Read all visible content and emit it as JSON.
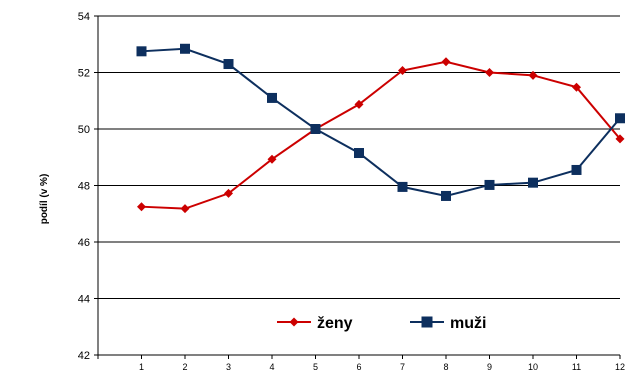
{
  "chart_data": {
    "type": "line",
    "title": "",
    "xlabel": "",
    "ylabel": "podíl (v %)",
    "categories": [
      "1",
      "2",
      "3",
      "4",
      "5",
      "6",
      "7",
      "8",
      "9",
      "10",
      "11",
      "12"
    ],
    "ylim": [
      42,
      54
    ],
    "yticks": [
      "42",
      "44",
      "46",
      "48",
      "50",
      "52",
      "54"
    ],
    "grid": true,
    "legend_position": "inside-bottom",
    "series": [
      {
        "name": "ženy",
        "color": "#cc0000",
        "marker": "diamond",
        "values": [
          47.25,
          47.18,
          47.72,
          48.93,
          50.0,
          50.87,
          52.07,
          52.38,
          52.0,
          51.9,
          51.48,
          49.65
        ]
      },
      {
        "name": "muži",
        "color": "#0d2f5e",
        "marker": "square",
        "values": [
          52.75,
          52.84,
          52.3,
          51.1,
          50.0,
          49.15,
          47.95,
          47.63,
          48.02,
          48.1,
          48.55,
          50.38
        ]
      }
    ]
  }
}
